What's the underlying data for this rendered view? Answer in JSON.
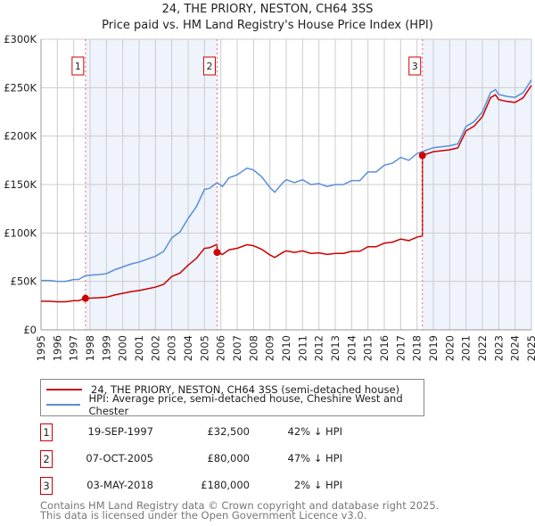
{
  "chart_data": {
    "type": "line",
    "title": "24, THE PRIORY, NESTON, CH64 3SS",
    "subtitle": "Price paid vs. HM Land Registry's House Price Index (HPI)",
    "xlim": [
      1995,
      2025
    ],
    "ylim": [
      0,
      300000
    ],
    "x_ticks": [
      "1995",
      "1996",
      "1997",
      "1998",
      "1999",
      "2000",
      "2001",
      "2002",
      "2003",
      "2004",
      "2005",
      "2006",
      "2007",
      "2008",
      "2009",
      "2010",
      "2011",
      "2012",
      "2013",
      "2014",
      "2015",
      "2016",
      "2017",
      "2018",
      "2019",
      "2020",
      "2021",
      "2022",
      "2023",
      "2024",
      "2025"
    ],
    "y_ticks": [
      {
        "v": 0,
        "label": "£0"
      },
      {
        "v": 50000,
        "label": "£50K"
      },
      {
        "v": 100000,
        "label": "£100K"
      },
      {
        "v": 150000,
        "label": "£150K"
      },
      {
        "v": 200000,
        "label": "£200K"
      },
      {
        "v": 250000,
        "label": "£250K"
      },
      {
        "v": 300000,
        "label": "£300K"
      }
    ],
    "grid": true,
    "colors": {
      "property": "#cc0000",
      "hpi": "#5b8fd6",
      "shade": "#eef3fc"
    },
    "hpi_series": [
      [
        1995,
        51
      ],
      [
        1995.5,
        51
      ],
      [
        1996,
        50
      ],
      [
        1996.5,
        50
      ],
      [
        1997,
        52
      ],
      [
        1997.3,
        52
      ],
      [
        1997.72,
        56
      ],
      [
        1998.5,
        57
      ],
      [
        1999,
        58
      ],
      [
        1999.5,
        62
      ],
      [
        2000,
        65
      ],
      [
        2000.5,
        68
      ],
      [
        2001,
        70
      ],
      [
        2001.5,
        73
      ],
      [
        2002,
        76
      ],
      [
        2002.5,
        81
      ],
      [
        2003,
        95
      ],
      [
        2003.5,
        101
      ],
      [
        2004,
        115
      ],
      [
        2004.5,
        127
      ],
      [
        2005,
        145
      ],
      [
        2005.3,
        146
      ],
      [
        2005.77,
        152
      ],
      [
        2006.1,
        148
      ],
      [
        2006.5,
        157
      ],
      [
        2007,
        160
      ],
      [
        2007.6,
        167
      ],
      [
        2008,
        165
      ],
      [
        2008.5,
        158
      ],
      [
        2009,
        147
      ],
      [
        2009.3,
        142
      ],
      [
        2009.8,
        152
      ],
      [
        2010,
        155
      ],
      [
        2010.5,
        152
      ],
      [
        2011,
        155
      ],
      [
        2011.5,
        150
      ],
      [
        2012,
        151
      ],
      [
        2012.5,
        148
      ],
      [
        2013,
        150
      ],
      [
        2013.5,
        150
      ],
      [
        2014,
        154
      ],
      [
        2014.5,
        154
      ],
      [
        2015,
        163
      ],
      [
        2015.5,
        163
      ],
      [
        2016,
        170
      ],
      [
        2016.5,
        172
      ],
      [
        2017,
        178
      ],
      [
        2017.5,
        175
      ],
      [
        2018,
        182
      ],
      [
        2018.33,
        184
      ],
      [
        2019,
        188
      ],
      [
        2019.5,
        189
      ],
      [
        2020,
        190
      ],
      [
        2020.5,
        192
      ],
      [
        2021,
        210
      ],
      [
        2021.5,
        215
      ],
      [
        2022,
        225
      ],
      [
        2022.5,
        245
      ],
      [
        2022.8,
        248
      ],
      [
        2023,
        243
      ],
      [
        2023.5,
        241
      ],
      [
        2024,
        240
      ],
      [
        2024.5,
        245
      ],
      [
        2025,
        258
      ]
    ],
    "sales": [
      {
        "x": 1997.72,
        "price": 32500
      },
      {
        "x": 2005.77,
        "price": 80000
      },
      {
        "x": 2018.33,
        "price": 180000
      }
    ]
  },
  "legend": {
    "property": "24, THE PRIORY, NESTON, CH64 3SS (semi-detached house)",
    "hpi": "HPI: Average price, semi-detached house, Cheshire West and Chester"
  },
  "transactions": [
    {
      "num": "1",
      "date": "19-SEP-1997",
      "price": "£32,500",
      "hpi": "42% ↓ HPI"
    },
    {
      "num": "2",
      "date": "07-OCT-2005",
      "price": "£80,000",
      "hpi": "47% ↓ HPI"
    },
    {
      "num": "3",
      "date": "03-MAY-2018",
      "price": "£180,000",
      "hpi": "2% ↓ HPI"
    }
  ],
  "footer": {
    "line1": "Contains HM Land Registry data © Crown copyright and database right 2025.",
    "line2": "This data is licensed under the Open Government Licence v3.0."
  }
}
